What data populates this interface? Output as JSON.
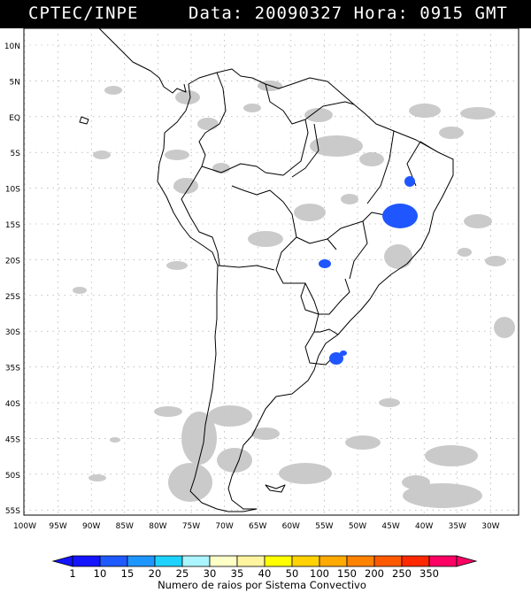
{
  "header": {
    "source": "CPTEC/INPE",
    "data_label": "Data:",
    "date": "20090327",
    "hora_label": "Hora:",
    "time": "0915",
    "tz": "GMT"
  },
  "map": {
    "lat_labels": [
      "10N",
      "5N",
      "EQ",
      "5S",
      "10S",
      "15S",
      "20S",
      "25S",
      "30S",
      "35S",
      "40S",
      "45S",
      "50S",
      "55S"
    ],
    "lon_labels": [
      "100W",
      "95W",
      "90W",
      "85W",
      "80W",
      "75W",
      "70W",
      "65W",
      "60W",
      "55W",
      "50W",
      "45W",
      "40W",
      "35W",
      "30W"
    ],
    "lightning_color": "#1f56ff",
    "cloud_color": "#c8c8c8",
    "grid": "dotted"
  },
  "legend": {
    "ticks": [
      "1",
      "10",
      "15",
      "20",
      "25",
      "30",
      "35",
      "40",
      "50",
      "100",
      "150",
      "200",
      "250",
      "350"
    ],
    "colors": [
      "#1414ff",
      "#1e5aff",
      "#1e96ff",
      "#1ed2ff",
      "#aaf5ff",
      "#ffffc8",
      "#fff5a0",
      "#ffff00",
      "#ffd200",
      "#ffaa00",
      "#ff8200",
      "#ff5a00",
      "#ff2800",
      "#ff0064"
    ],
    "title": "Numero de raios por Sistema Convectivo"
  }
}
